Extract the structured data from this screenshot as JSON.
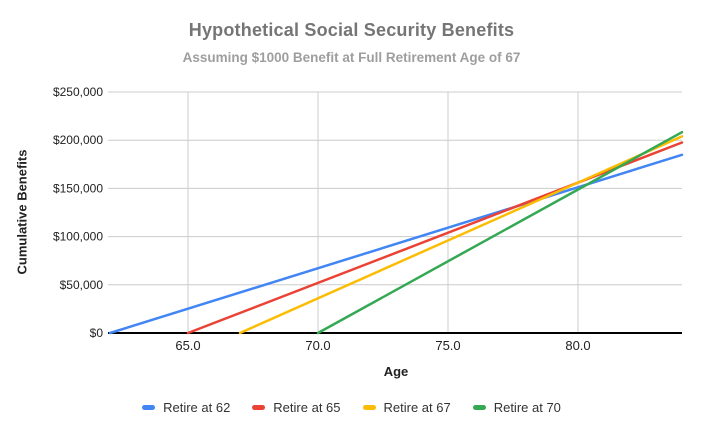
{
  "chart_data": {
    "type": "line",
    "title": "Hypothetical Social Security Benefits",
    "subtitle": "Assuming $1000 Benefit at Full Retirement Age of 67",
    "xlabel": "Age",
    "ylabel": "Cumulative Benefits",
    "xlim": [
      62,
      84
    ],
    "ylim": [
      0,
      250000
    ],
    "grid": true,
    "legend_position": "bottom",
    "background_color": "#ffffff",
    "gridline_color": "#cccccc",
    "axis_line_color": "#000000",
    "tick_label_color": "#222222",
    "title_color": "#757575",
    "subtitle_color": "#9e9e9e",
    "xticks": [
      {
        "value": 65,
        "label": "65.0"
      },
      {
        "value": 70,
        "label": "70.0"
      },
      {
        "value": 75,
        "label": "75.0"
      },
      {
        "value": 80,
        "label": "80.0"
      }
    ],
    "yticks": [
      {
        "value": 0,
        "label": "$0"
      },
      {
        "value": 50000,
        "label": "$50,000"
      },
      {
        "value": 100000,
        "label": "$100,000"
      },
      {
        "value": 150000,
        "label": "$150,000"
      },
      {
        "value": 200000,
        "label": "$200,000"
      },
      {
        "value": 250000,
        "label": "$250,000"
      }
    ],
    "series": [
      {
        "name": "Retire at 62",
        "color": "#4285F4",
        "x": [
          62,
          84
        ],
        "y": [
          0,
          184800
        ]
      },
      {
        "name": "Retire at 65",
        "color": "#EA4335",
        "x": [
          65,
          84
        ],
        "y": [
          0,
          197600
        ]
      },
      {
        "name": "Retire at 67",
        "color": "#FBBC04",
        "x": [
          67,
          84
        ],
        "y": [
          0,
          204000
        ]
      },
      {
        "name": "Retire at 70",
        "color": "#34A853",
        "x": [
          70,
          84
        ],
        "y": [
          0,
          208320
        ]
      }
    ]
  }
}
